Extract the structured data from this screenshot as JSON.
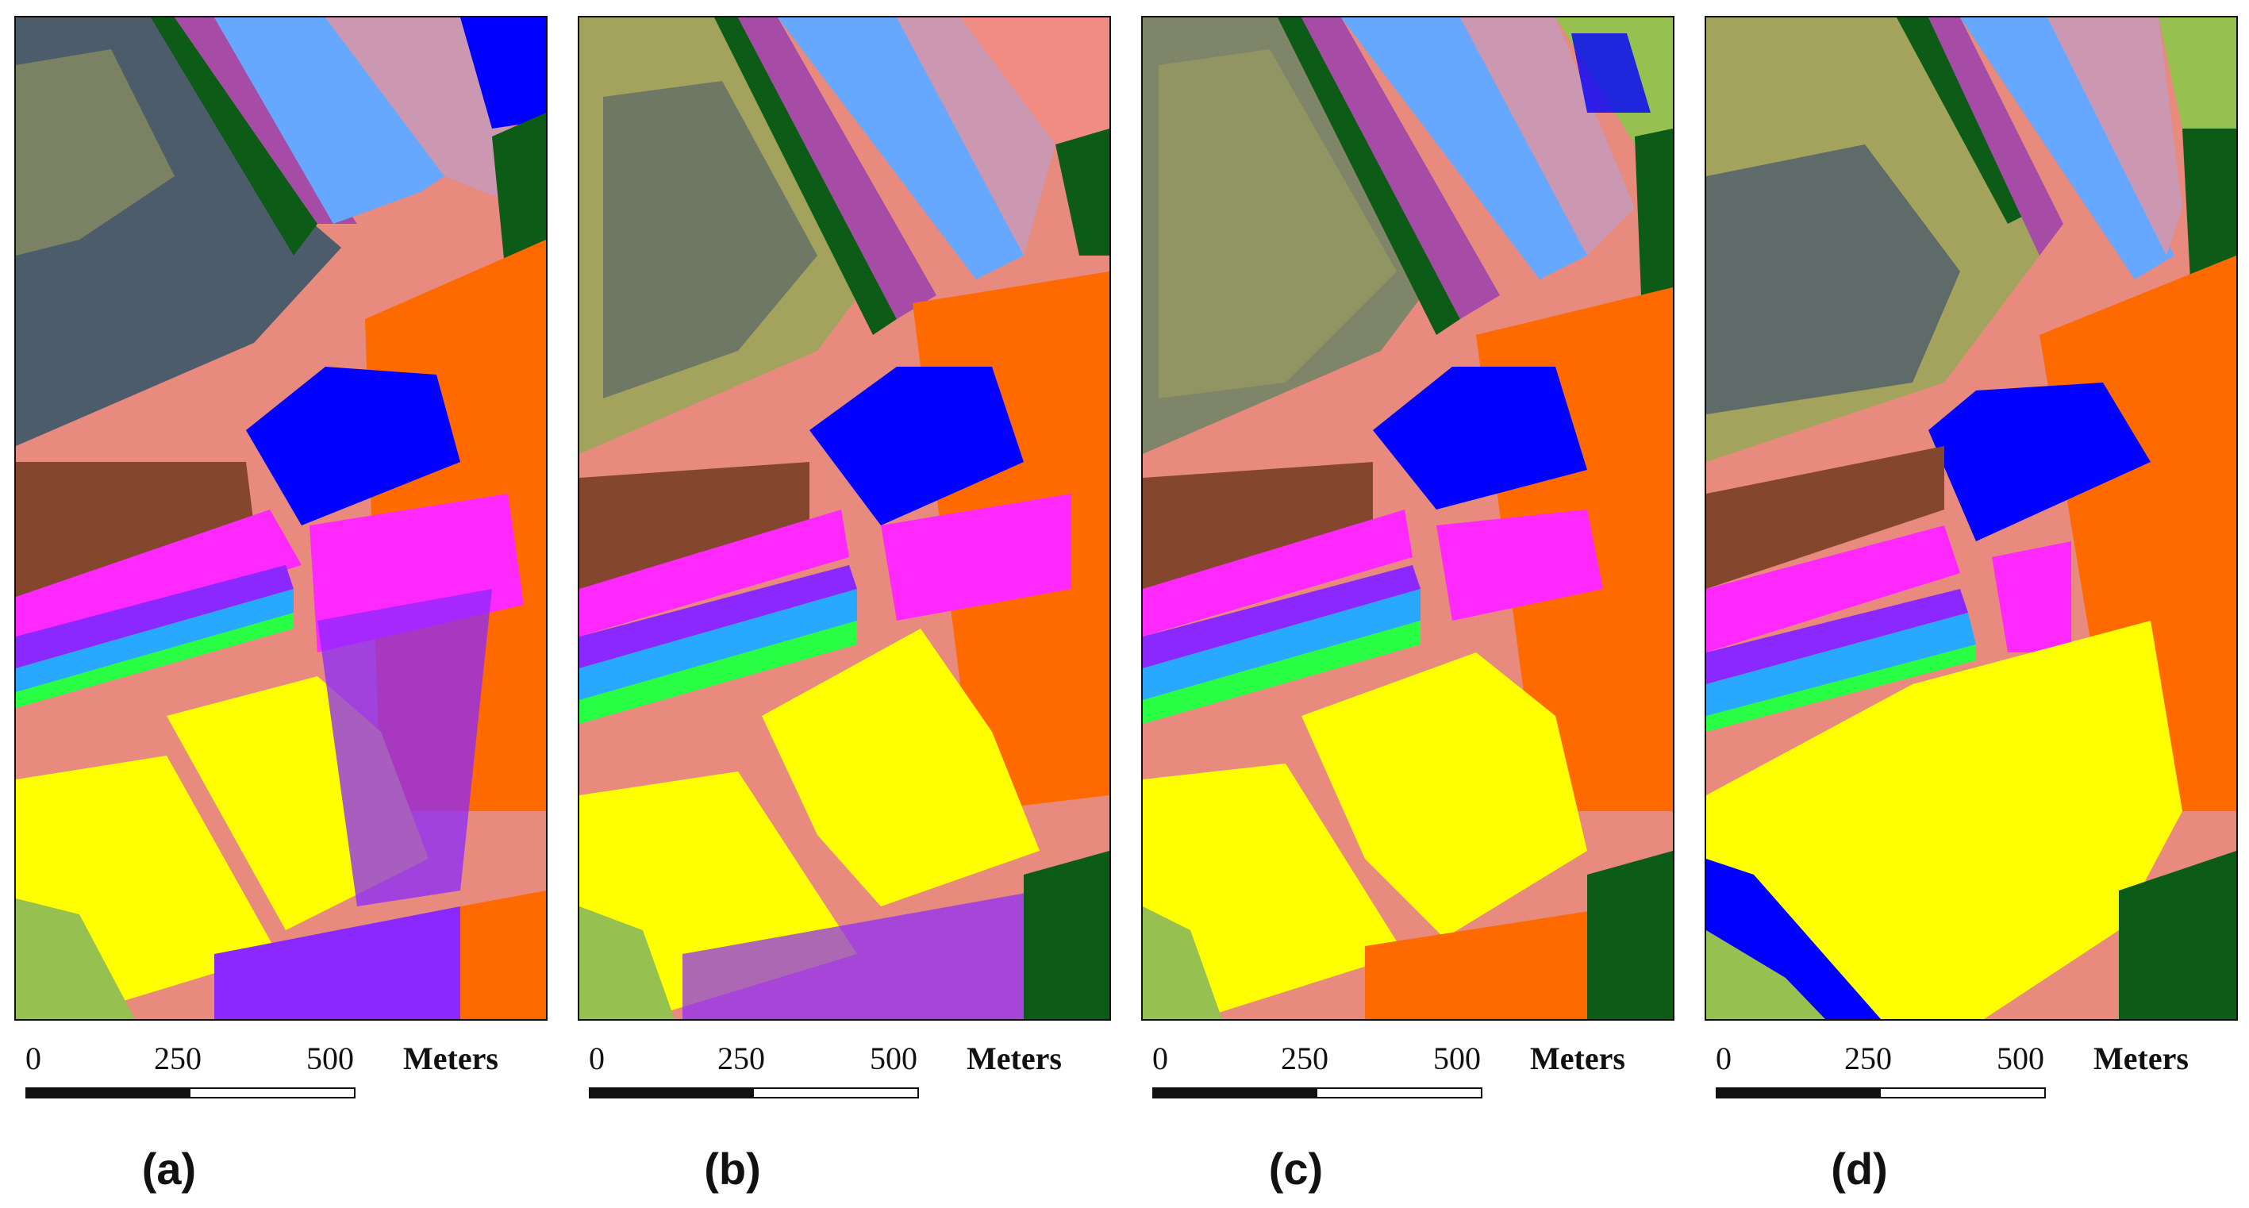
{
  "panels": [
    {
      "caption": "(a)"
    },
    {
      "caption": "(b)"
    },
    {
      "caption": "(c)"
    },
    {
      "caption": "(d)"
    }
  ],
  "scale_bar": {
    "ticks": [
      "0",
      "250",
      "500"
    ],
    "units": "Meters"
  },
  "class_colors": {
    "olive": "#a3a35d",
    "slate": "#4c5c6b",
    "purple_magenta": "#a64ca6",
    "light_blue": "#66a8ff",
    "mauve": "#cc97b0",
    "blue": "#0000ff",
    "dark_green": "#0c5c18",
    "orange": "#ff6a00",
    "salmon": "#f08c84",
    "brown": "#85462e",
    "magenta": "#ff28ff",
    "violet": "#8a28ff",
    "cyan_blue": "#28a8ff",
    "green": "#28ff44",
    "yellow": "#ffff00",
    "light_green": "#96c050"
  }
}
